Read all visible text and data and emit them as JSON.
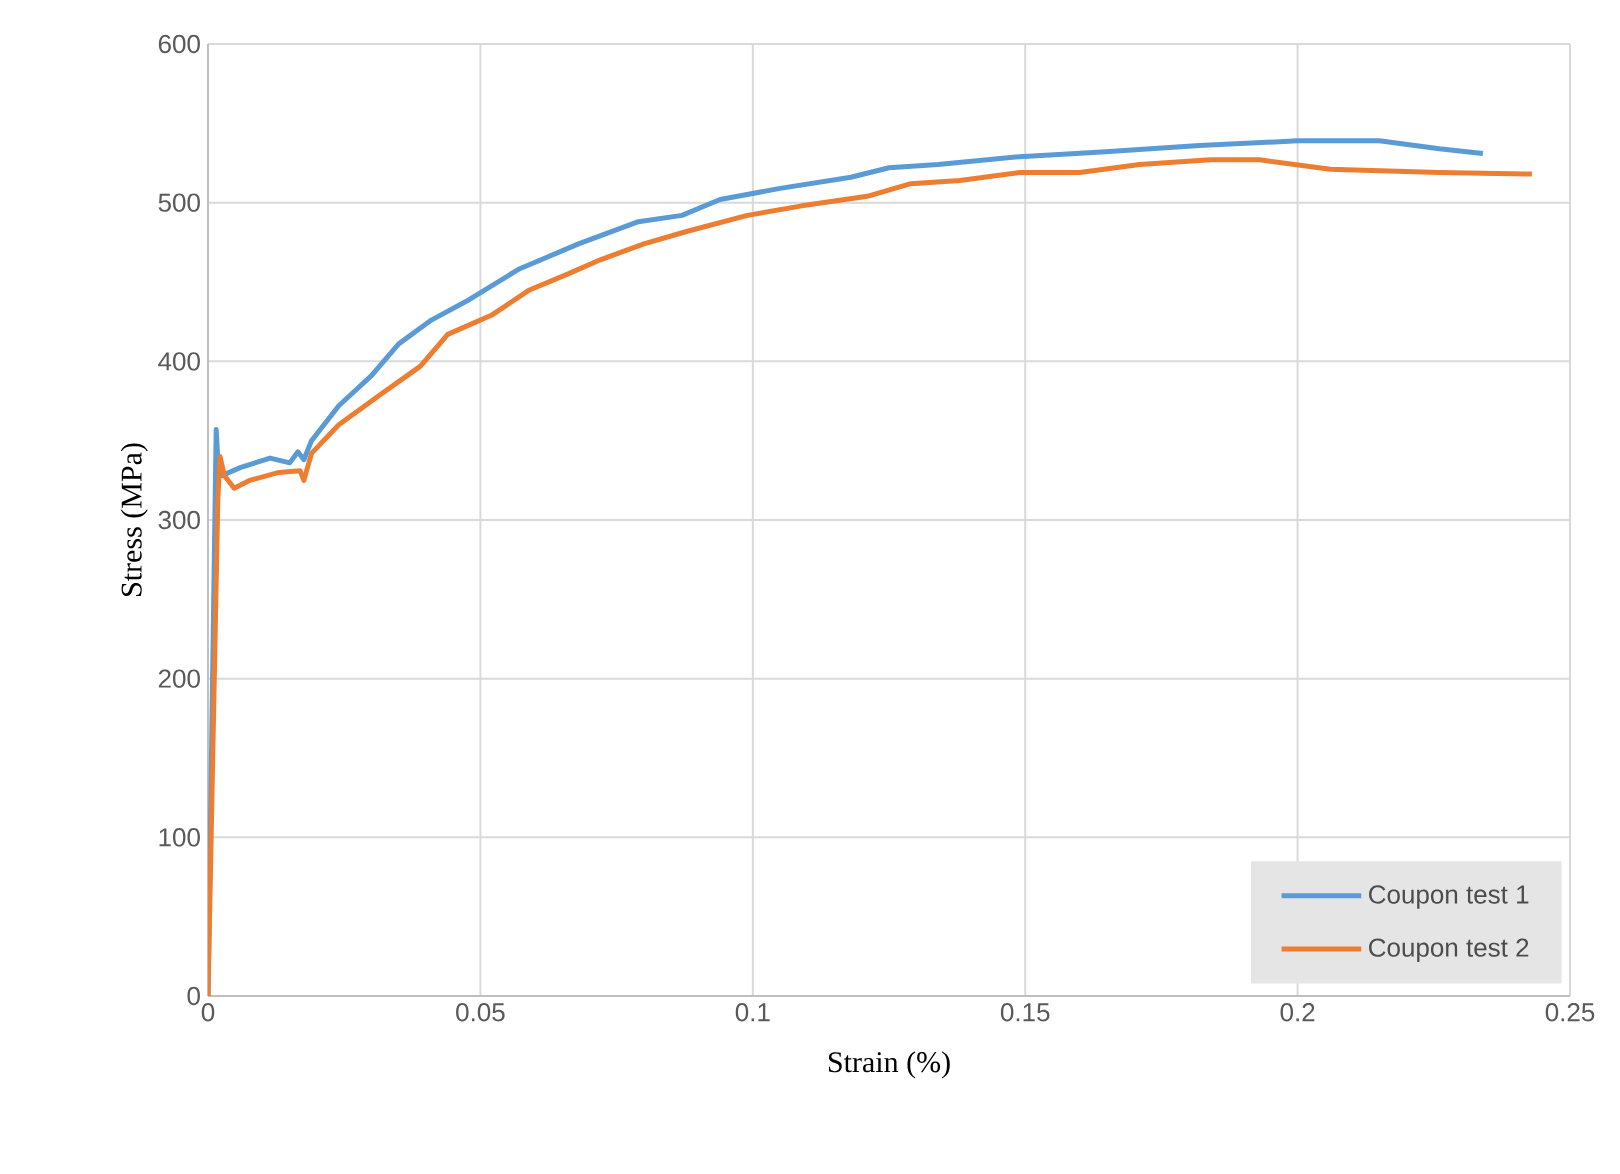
{
  "chart_data": {
    "type": "line",
    "xlabel": "Strain (%)",
    "ylabel": "Stress (MPa)",
    "xlim": [
      0,
      0.25
    ],
    "ylim": [
      0,
      600
    ],
    "xticks": [
      0,
      0.05,
      0.1,
      0.15,
      0.2,
      0.25
    ],
    "yticks": [
      0,
      100,
      200,
      300,
      400,
      500,
      600
    ],
    "grid": true,
    "legend": "bottom right",
    "marker": "none",
    "line_style": "solid",
    "series": [
      {
        "name": "Coupon test 1",
        "color": "#5b9bd5",
        "x": [
          0,
          0.0015,
          0.0018,
          0.0026,
          0.0059,
          0.0114,
          0.015,
          0.0165,
          0.0176,
          0.019,
          0.024,
          0.03,
          0.035,
          0.041,
          0.048,
          0.057,
          0.068,
          0.079,
          0.087,
          0.094,
          0.105,
          0.118,
          0.125,
          0.134,
          0.149,
          0.164,
          0.182,
          0.2,
          0.215,
          0.226,
          0.234
        ],
        "values": [
          0,
          357,
          338,
          328,
          333,
          339,
          336,
          343,
          338,
          350,
          372,
          391,
          411,
          426,
          439,
          458,
          474,
          488,
          492,
          502,
          509,
          516,
          522,
          524,
          529,
          532,
          536,
          539,
          539,
          534,
          531
        ]
      },
      {
        "name": "Coupon test 2",
        "color": "#ed7d31",
        "x": [
          0,
          0.0018,
          0.0022,
          0.003,
          0.0048,
          0.0077,
          0.013,
          0.0169,
          0.0176,
          0.019,
          0.024,
          0.0316,
          0.039,
          0.044,
          0.052,
          0.059,
          0.066,
          0.072,
          0.08,
          0.088,
          0.099,
          0.109,
          0.121,
          0.129,
          0.138,
          0.149,
          0.16,
          0.171,
          0.184,
          0.193,
          0.206,
          0.226,
          0.243
        ],
        "values": [
          0,
          313,
          340,
          328,
          320,
          325,
          330,
          331,
          325,
          342,
          360,
          379,
          397,
          417,
          429,
          445,
          455,
          464,
          474,
          482,
          492,
          498,
          504,
          512,
          514,
          519,
          519,
          524,
          527,
          527,
          521,
          519,
          518
        ]
      }
    ]
  }
}
